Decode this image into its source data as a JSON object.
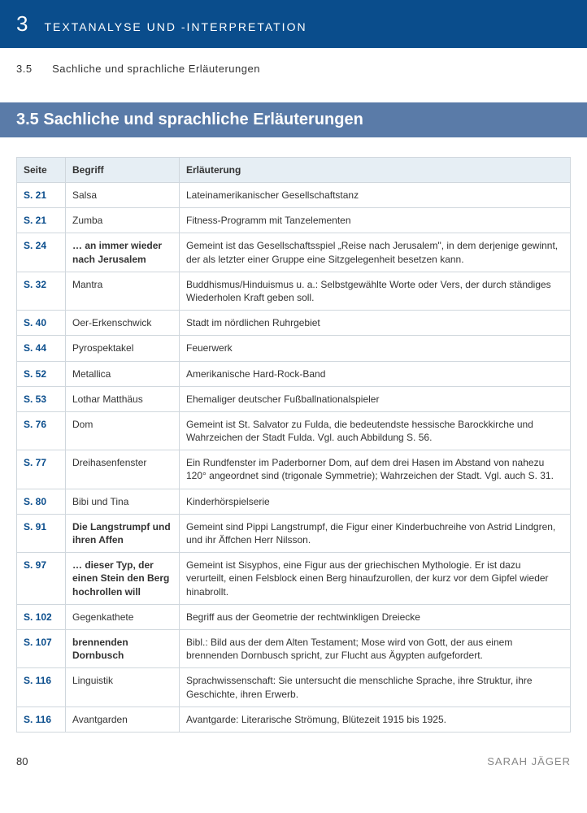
{
  "header": {
    "chapter_num": "3",
    "chapter_title": "TEXTANALYSE UND -INTERPRETATION"
  },
  "subheading": {
    "num": "3.5",
    "text": "Sachliche und sprachliche Erläuterungen"
  },
  "section_bar": "3.5  Sachliche und sprachliche Erläuterungen",
  "table": {
    "columns": [
      "Seite",
      "Begriff",
      "Erläuterung"
    ],
    "rows": [
      {
        "page": "S. 21",
        "term": "Salsa",
        "bold": false,
        "expl": "Lateinamerikanischer Gesellschaftstanz"
      },
      {
        "page": "S. 21",
        "term": "Zumba",
        "bold": false,
        "expl": "Fitness-Programm mit Tanzelementen"
      },
      {
        "page": "S. 24",
        "term": "… an immer wieder nach Jerusalem",
        "bold": true,
        "expl": "Gemeint ist das Gesellschaftsspiel „Reise nach Jerusalem\", in dem derjenige gewinnt, der als letzter einer Gruppe eine Sitzgelegenheit besetzen kann."
      },
      {
        "page": "S. 32",
        "term": "Mantra",
        "bold": false,
        "expl": "Buddhismus/Hinduismus u. a.: Selbstgewählte Worte oder Vers, der durch ständiges Wiederholen Kraft geben soll."
      },
      {
        "page": "S. 40",
        "term": "Oer-Erkenschwick",
        "bold": false,
        "expl": "Stadt im nördlichen Ruhrgebiet"
      },
      {
        "page": "S. 44",
        "term": "Pyrospektakel",
        "bold": false,
        "expl": "Feuerwerk"
      },
      {
        "page": "S. 52",
        "term": "Metallica",
        "bold": false,
        "expl": "Amerikanische Hard-Rock-Band"
      },
      {
        "page": "S. 53",
        "term": "Lothar Matthäus",
        "bold": false,
        "expl": "Ehemaliger deutscher Fußballnationalspieler"
      },
      {
        "page": "S. 76",
        "term": "Dom",
        "bold": false,
        "expl": "Gemeint ist St. Salvator zu Fulda, die bedeutendste hessische Barockkirche und Wahrzeichen der Stadt Fulda. Vgl. auch Abbildung S. 56."
      },
      {
        "page": "S. 77",
        "term": "Dreihasenfenster",
        "bold": false,
        "expl": "Ein Rundfenster im Paderborner Dom, auf dem drei Hasen im Abstand von nahezu 120° angeordnet sind (trigonale Symmetrie); Wahrzeichen der Stadt. Vgl. auch S. 31."
      },
      {
        "page": "S. 80",
        "term": "Bibi und Tina",
        "bold": false,
        "expl": "Kinderhörspielserie"
      },
      {
        "page": "S. 91",
        "term": "Die Langstrumpf und ihren Affen",
        "bold": true,
        "expl": "Gemeint sind Pippi Langstrumpf, die Figur einer Kinderbuch­reihe von Astrid Lindgren, und ihr Äffchen Herr Nilsson."
      },
      {
        "page": "S. 97",
        "term": "… dieser Typ, der einen Stein den Berg hochrollen will",
        "bold": true,
        "expl": "Gemeint ist Sisyphos, eine Figur aus der griechischen Mythologie. Er ist dazu verurteilt, einen Felsblock einen Berg hinaufzurollen, der kurz vor dem Gipfel wieder hinabrollt."
      },
      {
        "page": "S. 102",
        "term": "Gegenkathete",
        "bold": false,
        "expl": "Begriff aus der Geometrie der rechtwinkligen Dreiecke"
      },
      {
        "page": "S. 107",
        "term": "brennenden Dornbusch",
        "bold": true,
        "expl": "Bibl.: Bild aus der dem Alten Testament; Mose wird von Gott, der aus einem brennenden Dornbusch spricht, zur Flucht aus Ägypten aufgefordert."
      },
      {
        "page": "S. 116",
        "term": "Linguistik",
        "bold": false,
        "expl": "Sprachwissenschaft: Sie untersucht die menschliche Sprache, ihre Struktur, ihre Geschichte, ihren Erwerb."
      },
      {
        "page": "S. 116",
        "term": "Avantgarden",
        "bold": false,
        "expl": "Avantgarde: Literarische Strömung, Blütezeit 1915 bis 1925."
      }
    ]
  },
  "footer": {
    "page_num": "80",
    "author": "SARAH JÄGER"
  }
}
